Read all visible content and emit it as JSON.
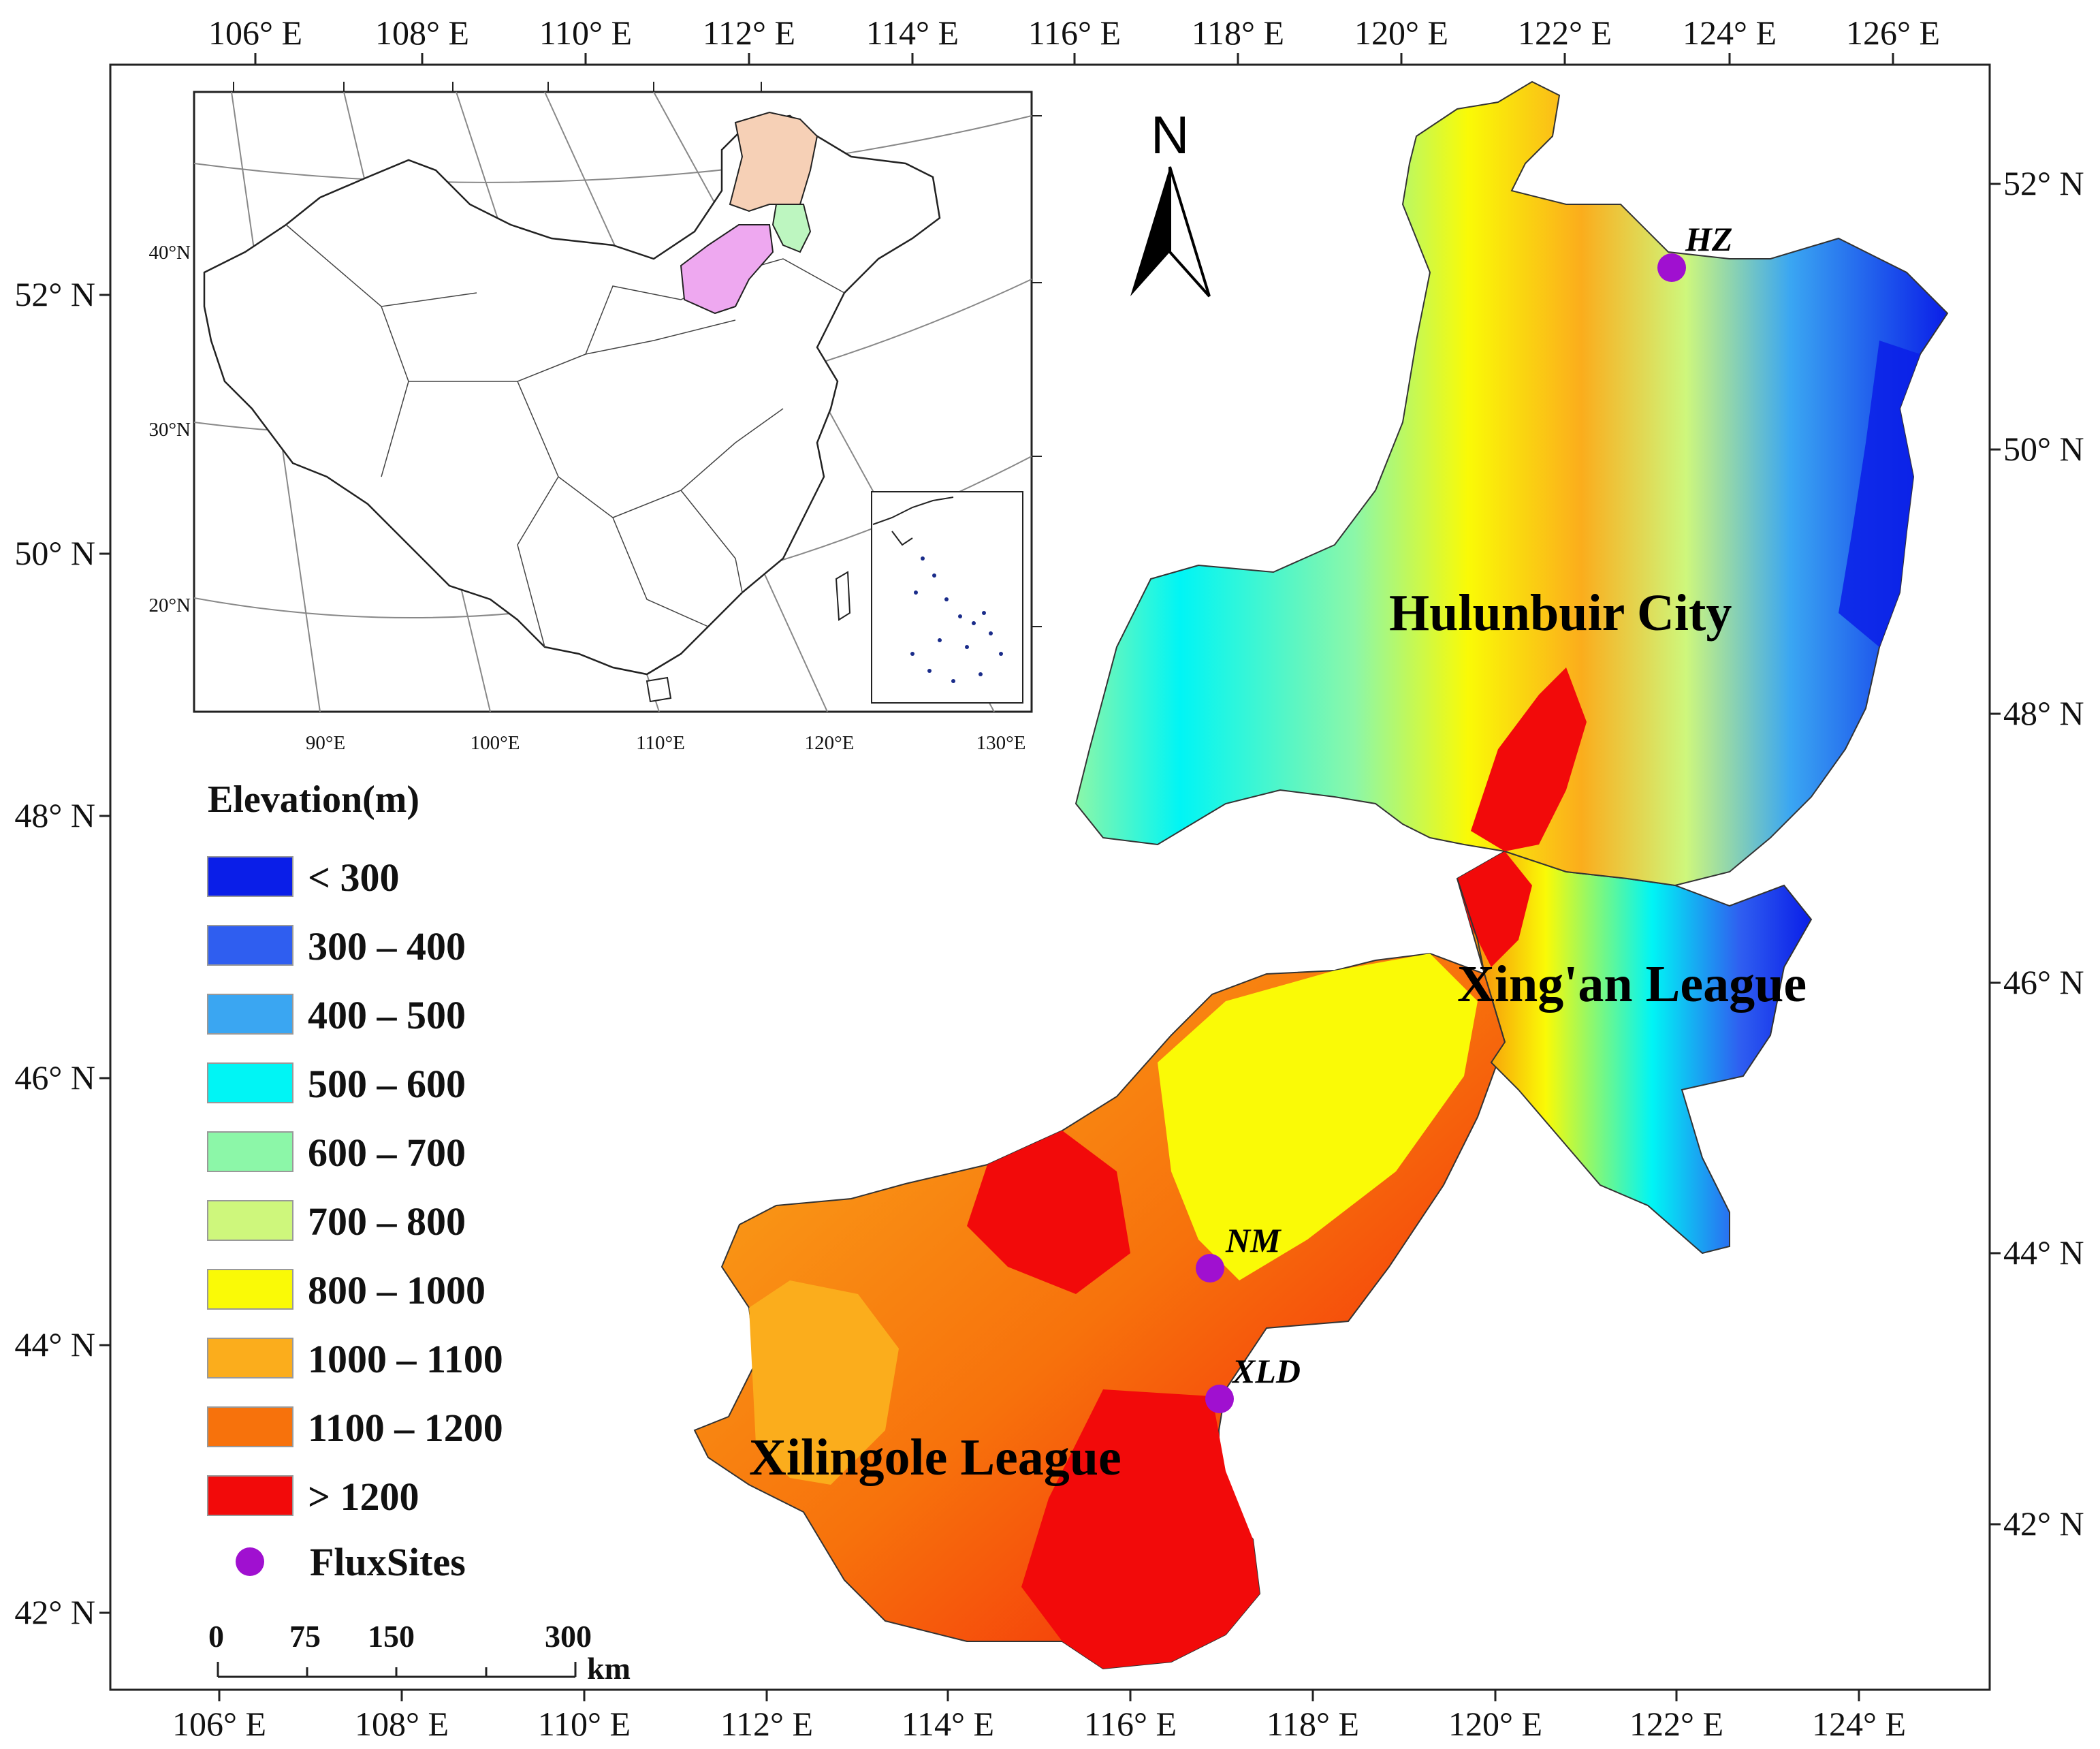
{
  "colors": {
    "lt300": "#0a1ee8",
    "r300_400": "#2f5ef0",
    "r400_500": "#3aa6f2",
    "r500_600": "#00f5f5",
    "r600_700": "#8cf7a8",
    "r700_800": "#cef77c",
    "r800_1000": "#fafa06",
    "r1000_1100": "#fbad1c",
    "r1100_1200": "#f7720c",
    "gt1200": "#f20a0a",
    "flux": "#a010d0",
    "inset_nm": "#f6d0b6",
    "inset_xa": "#bdf6c0",
    "inset_xl": "#eea8f0"
  },
  "frame": {
    "top_lon": [
      "106° E",
      "108° E",
      "110° E",
      "112° E",
      "114° E",
      "116° E",
      "118° E",
      "120° E",
      "122° E",
      "124° E",
      "126° E"
    ],
    "bottom_lon": [
      "106° E",
      "108° E",
      "110° E",
      "112° E",
      "114° E",
      "116° E",
      "118° E",
      "120° E",
      "122° E",
      "124° E"
    ],
    "left_lat": [
      "52° N",
      "50° N",
      "48° N",
      "46° N",
      "44° N",
      "42° N"
    ],
    "right_lat": [
      "52° N",
      "50° N",
      "48° N",
      "46° N",
      "44° N",
      "42° N"
    ]
  },
  "inset": {
    "lat_labels": [
      "40°N",
      "30°N",
      "20°N"
    ],
    "lon_labels": [
      "90°E",
      "100°E",
      "110°E",
      "120°E",
      "130°E"
    ]
  },
  "north_arrow": {
    "label": "N"
  },
  "regions": {
    "hulunbuir": "Hulunbuir City",
    "xingan": "Xing'an League",
    "xilingole": "Xilingole League"
  },
  "sites": [
    {
      "id": "HZ",
      "label": "HZ"
    },
    {
      "id": "NM",
      "label": "NM"
    },
    {
      "id": "XLD",
      "label": "XLD"
    }
  ],
  "legend": {
    "title": "Elevation(m)",
    "items": [
      {
        "label": "< 300",
        "color_key": "lt300"
      },
      {
        "label": "300 – 400",
        "color_key": "r300_400"
      },
      {
        "label": "400 – 500",
        "color_key": "r400_500"
      },
      {
        "label": "500 – 600",
        "color_key": "r500_600"
      },
      {
        "label": "600 – 700",
        "color_key": "r600_700"
      },
      {
        "label": "700 – 800",
        "color_key": "r700_800"
      },
      {
        "label": "800 – 1000",
        "color_key": "r800_1000"
      },
      {
        "label": "1000 – 1100",
        "color_key": "r1000_1100"
      },
      {
        "label": "1100 – 1200",
        "color_key": "r1100_1200"
      },
      {
        "label": "> 1200",
        "color_key": "gt1200"
      }
    ],
    "flux_label": "FluxSites"
  },
  "scale_bar": {
    "ticks": [
      "0",
      "75",
      "150",
      "300"
    ],
    "unit": "km"
  }
}
